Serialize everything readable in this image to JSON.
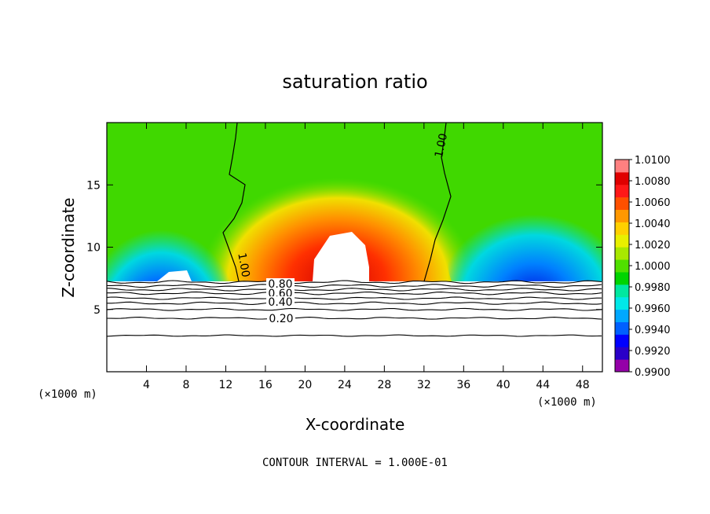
{
  "chart_data": {
    "type": "heatmap",
    "title": "saturation ratio",
    "xlabel": "X-coordinate",
    "ylabel": "Z-coordinate",
    "x_unit": "(×1000 m)",
    "y_unit": "(×1000 m)",
    "xlim": [
      0,
      50
    ],
    "ylim": [
      0,
      20
    ],
    "x_ticks": [
      4,
      8,
      12,
      16,
      20,
      24,
      28,
      32,
      36,
      40,
      44,
      48
    ],
    "y_ticks": [
      5,
      10,
      15
    ],
    "colorbar": {
      "labels": [
        "1.0100",
        "1.0080",
        "1.0060",
        "1.0040",
        "1.0020",
        "1.0000",
        "0.9980",
        "0.9960",
        "0.9940",
        "0.9920",
        "0.9900"
      ],
      "colors": [
        "#9400a8",
        "#2a00c8",
        "#0000ff",
        "#0060ff",
        "#00a8ff",
        "#00e8e8",
        "#00e8a0",
        "#00d400",
        "#50e000",
        "#a8e800",
        "#e8f000",
        "#ffd000",
        "#ff9800",
        "#ff5000",
        "#ff1818",
        "#e00000",
        "#ff8080"
      ]
    },
    "contour_labels": [
      "1.00",
      "1.00",
      "0.80",
      "0.60",
      "0.40",
      "0.20"
    ],
    "footer": "CONTOUR INTERVAL = 1.000E-01"
  }
}
